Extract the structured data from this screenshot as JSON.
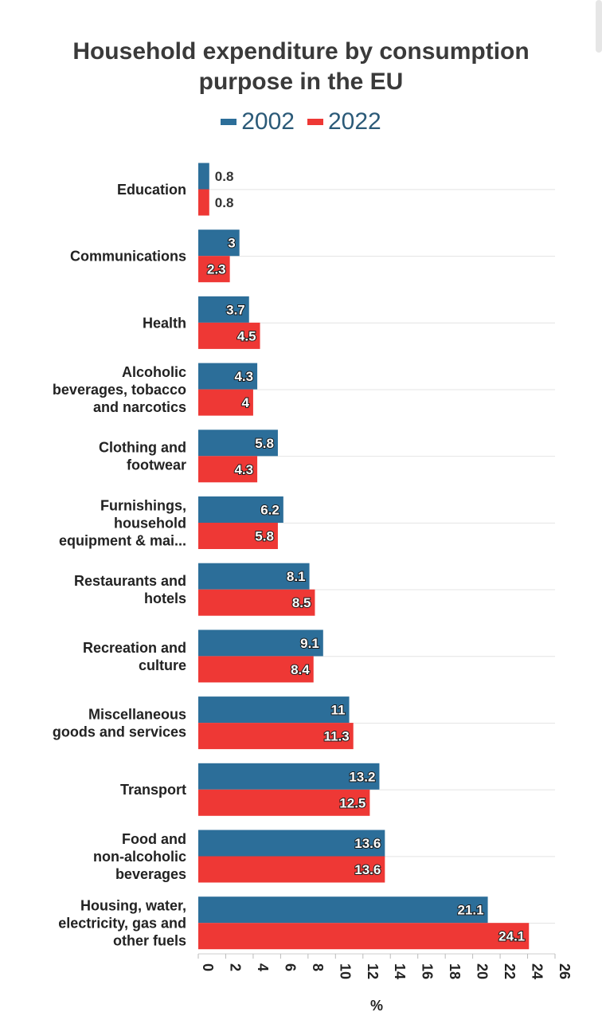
{
  "chart_data": {
    "type": "bar",
    "orientation": "horizontal",
    "title": "Household expenditure by consumption purpose in the EU",
    "xlabel": "%",
    "ylabel": "",
    "xlim": [
      0,
      26
    ],
    "ticks": [
      0,
      2,
      4,
      6,
      8,
      10,
      12,
      14,
      16,
      18,
      20,
      22,
      24,
      26
    ],
    "categories": [
      [
        "Education"
      ],
      [
        "Communications"
      ],
      [
        "Health"
      ],
      [
        "Alcoholic",
        "beverages, tobacco",
        "and narcotics"
      ],
      [
        "Clothing and",
        "footwear"
      ],
      [
        "Furnishings,",
        "household",
        "equipment & mai..."
      ],
      [
        "Restaurants and",
        "hotels"
      ],
      [
        "Recreation and",
        "culture"
      ],
      [
        "Miscellaneous",
        "goods and services"
      ],
      [
        "Transport"
      ],
      [
        "Food and",
        "non-alcoholic",
        "beverages"
      ],
      [
        "Housing, water,",
        "electricity, gas and",
        "other fuels"
      ]
    ],
    "series": [
      {
        "name": "2002",
        "color": "#2c6e99",
        "values": [
          0.8,
          3,
          3.7,
          4.3,
          5.8,
          6.2,
          8.1,
          9.1,
          11,
          13.2,
          13.6,
          21.1
        ]
      },
      {
        "name": "2022",
        "color": "#ee3835",
        "values": [
          0.8,
          2.3,
          4.5,
          4,
          4.3,
          5.8,
          8.5,
          8.4,
          11.3,
          12.5,
          13.6,
          24.1
        ]
      }
    ],
    "legend_position": "top-center",
    "grid": true
  }
}
